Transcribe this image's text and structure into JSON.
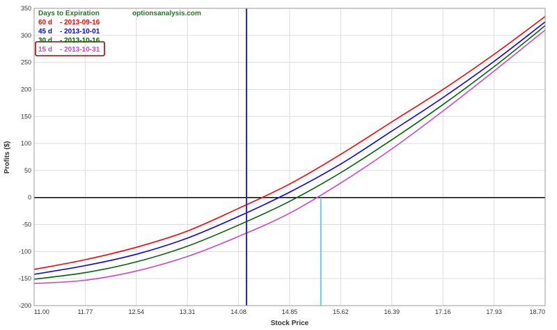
{
  "chart_data": {
    "type": "line",
    "xlabel": "Stock Price",
    "ylabel": "Profits ($)",
    "xlim": [
      11.0,
      18.7
    ],
    "ylim": [
      -200,
      350
    ],
    "x_ticks": [
      "11.00",
      "11.77",
      "12.54",
      "13.31",
      "14.08",
      "14.85",
      "15.62",
      "16.39",
      "17.16",
      "17.93",
      "18.70"
    ],
    "y_ticks": [
      "350",
      "300",
      "250",
      "200",
      "150",
      "100",
      "50",
      "0",
      "-50",
      "-100",
      "-150",
      "-200"
    ],
    "grid": true,
    "legend_title": "Days to Expiration",
    "watermark": "optionsanalysis.com",
    "highlighted_series": "15 d",
    "current_price_line_x": 14.2,
    "breakeven_line_x": 15.32,
    "x": [
      11.0,
      11.77,
      12.54,
      13.31,
      14.08,
      14.85,
      15.62,
      16.39,
      17.16,
      17.93,
      18.7
    ],
    "series": [
      {
        "name": "60 d",
        "date": "- 2013-09-16",
        "color": "#ff0000",
        "values": [
          -133,
          -115,
          -92,
          -62,
          -20,
          25,
          80,
          140,
          200,
          265,
          335
        ]
      },
      {
        "name": "45 d",
        "date": "- 2013-10-01",
        "color": "#0000ff",
        "values": [
          -142,
          -126,
          -105,
          -75,
          -35,
          10,
          62,
          123,
          185,
          252,
          325
        ]
      },
      {
        "name": "30 d",
        "date": "- 2013-10-16",
        "color": "#006400",
        "values": [
          -151,
          -139,
          -119,
          -90,
          -51,
          -7,
          46,
          107,
          172,
          242,
          318
        ]
      },
      {
        "name": "15 d",
        "date": "- 2013-10-31",
        "color": "#cc44cc",
        "values": [
          -159,
          -153,
          -136,
          -109,
          -72,
          -29,
          27,
          90,
          160,
          234,
          310
        ]
      }
    ]
  }
}
